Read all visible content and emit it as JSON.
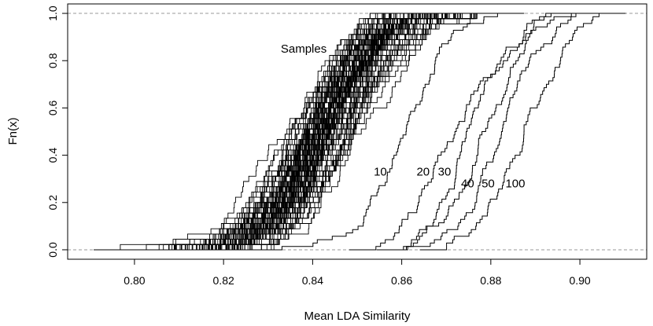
{
  "chart_data": {
    "type": "line",
    "title": "",
    "xlabel": "Mean LDA Similarity",
    "ylabel": "Fn(x)",
    "xlim": [
      0.785,
      0.915
    ],
    "ylim": [
      -0.04,
      1.04
    ],
    "x_ticks": [
      0.8,
      0.82,
      0.84,
      0.86,
      0.88,
      0.9
    ],
    "x_tick_labels": [
      "0.80",
      "0.82",
      "0.84",
      "0.86",
      "0.88",
      "0.90"
    ],
    "y_ticks": [
      0.0,
      0.2,
      0.4,
      0.6,
      0.8,
      1.0
    ],
    "y_tick_labels": [
      "0.0",
      "0.2",
      "0.4",
      "0.6",
      "0.8",
      "1.0"
    ],
    "reference_lines": [
      0.0,
      1.0
    ],
    "sample_curves": {
      "label": "Samples",
      "count": 100,
      "median_center": 0.8425,
      "center_spread": 0.0035,
      "approx_range": [
        0.796,
        0.877
      ]
    },
    "series": [
      {
        "name": "10",
        "label": "10",
        "median": 0.862,
        "approx_range": [
          0.829,
          0.892
        ]
      },
      {
        "name": "20",
        "label": "20",
        "median": 0.871,
        "approx_range": [
          0.849,
          0.894
        ]
      },
      {
        "name": "30",
        "label": "30",
        "median": 0.875,
        "approx_range": [
          0.851,
          0.898
        ]
      },
      {
        "name": "40",
        "label": "40",
        "median": 0.88,
        "approx_range": [
          0.858,
          0.902
        ]
      },
      {
        "name": "50",
        "label": "50",
        "median": 0.883,
        "approx_range": [
          0.86,
          0.903
        ]
      },
      {
        "name": "100",
        "label": "100",
        "median": 0.887,
        "approx_range": [
          0.862,
          0.905
        ]
      }
    ]
  }
}
